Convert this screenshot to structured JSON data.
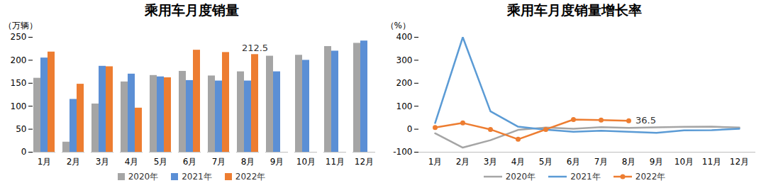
{
  "chart_data": [
    {
      "type": "bar",
      "title": "乘用车月度销量",
      "y_label": "（万辆）",
      "categories": [
        "1月",
        "2月",
        "3月",
        "4月",
        "5月",
        "6月",
        "7月",
        "8月",
        "9月",
        "10月",
        "11月",
        "12月"
      ],
      "series": [
        {
          "name": "2020年",
          "color": "#a5a5a5",
          "values": [
            161,
            22,
            105,
            153,
            167,
            176,
            166,
            175,
            209,
            211,
            230,
            237
          ]
        },
        {
          "name": "2021年",
          "color": "#5b8fd5",
          "values": [
            205,
            115,
            187,
            170,
            164,
            156,
            155,
            155,
            175,
            200,
            220,
            242
          ]
        },
        {
          "name": "2022年",
          "color": "#ed7d31",
          "values": [
            218,
            148,
            186,
            96,
            162,
            222,
            217,
            212.5,
            null,
            null,
            null,
            null
          ]
        }
      ],
      "ylim": [
        0,
        250
      ],
      "yticks": [
        0,
        50,
        100,
        150,
        200,
        250
      ],
      "grid": false,
      "legend": "bottom",
      "annotations": [
        {
          "text": "212.5",
          "series": "2022年",
          "category": "8月",
          "value": 212.5
        }
      ]
    },
    {
      "type": "line",
      "title": "乘用车月度销量增长率",
      "y_label": "（%）",
      "categories": [
        "1月",
        "2月",
        "3月",
        "4月",
        "5月",
        "6月",
        "7月",
        "8月",
        "9月",
        "10月",
        "11月",
        "12月"
      ],
      "series": [
        {
          "name": "2020年",
          "color": "#a5a5a5",
          "values": [
            -18,
            -80,
            -48,
            -3,
            7,
            2,
            9,
            6,
            8,
            10,
            11,
            7
          ]
        },
        {
          "name": "2021年",
          "color": "#5b9bd5",
          "values": [
            27,
            400,
            78,
            11,
            -2,
            -11,
            -7,
            -11,
            -16,
            -5,
            -4,
            2
          ]
        },
        {
          "name": "2022年",
          "color": "#ed7d31",
          "marker": "circle",
          "values": [
            7,
            27,
            -1,
            -44,
            -1,
            42,
            40,
            36.5,
            null,
            null,
            null,
            null
          ]
        }
      ],
      "ylim": [
        -100,
        400
      ],
      "yticks": [
        -100,
        0,
        100,
        200,
        300,
        400
      ],
      "grid": false,
      "legend": "bottom",
      "annotations": [
        {
          "text": "36.5",
          "series": "2022年",
          "category": "8月",
          "value": 36.5
        }
      ]
    }
  ]
}
